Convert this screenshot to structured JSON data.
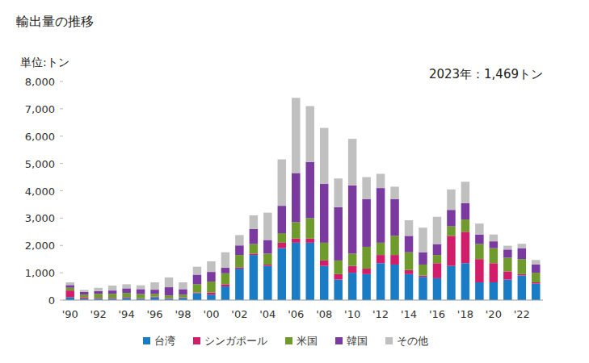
{
  "chart_data": {
    "type": "bar",
    "title": "輸出量の推移",
    "y_label": "単位:トン",
    "annotation": "2023年：1,469トン",
    "stacked": true,
    "grid": false,
    "legend": "bottom",
    "categories": [
      "'90",
      null,
      "'92",
      null,
      "'94",
      null,
      "'96",
      null,
      "'98",
      null,
      "'00",
      null,
      "'02",
      null,
      "'04",
      null,
      "'06",
      null,
      "'08",
      null,
      "'10",
      null,
      "'12",
      null,
      "'14",
      null,
      "'16",
      null,
      "'18",
      null,
      "'20",
      null,
      "'22",
      null
    ],
    "ylim": [
      0,
      8000
    ],
    "yticks": [
      0,
      {
        "value": 1000,
        "label": "1,000"
      },
      {
        "value": 2000,
        "label": "2,000"
      },
      {
        "value": 3000,
        "label": "3,000"
      },
      {
        "value": 4000,
        "label": "4,000"
      },
      {
        "value": 5000,
        "label": "5,000"
      },
      {
        "value": 6000,
        "label": "6,000"
      },
      {
        "value": 7000,
        "label": "7,000"
      },
      {
        "value": 8000,
        "label": "8,000"
      }
    ],
    "series": [
      {
        "name": "台湾",
        "color": "#1b7cc6",
        "values": [
          100,
          50,
          50,
          50,
          80,
          50,
          100,
          50,
          80,
          250,
          200,
          500,
          1150,
          1650,
          1250,
          1900,
          2100,
          2100,
          1250,
          750,
          1000,
          950,
          1350,
          1300,
          950,
          850,
          800,
          1250,
          1350,
          650,
          650,
          750,
          900,
          600
        ]
      },
      {
        "name": "シンガポール",
        "color": "#d21e6a",
        "values": [
          250,
          50,
          30,
          30,
          30,
          20,
          30,
          20,
          20,
          30,
          80,
          80,
          50,
          50,
          50,
          200,
          150,
          150,
          200,
          200,
          250,
          200,
          300,
          350,
          150,
          50,
          550,
          1100,
          1150,
          850,
          700,
          300,
          50,
          50
        ]
      },
      {
        "name": "米国",
        "color": "#6f9a2c",
        "values": [
          100,
          100,
          150,
          150,
          150,
          150,
          100,
          100,
          100,
          300,
          400,
          400,
          450,
          350,
          400,
          350,
          600,
          750,
          650,
          500,
          450,
          800,
          450,
          700,
          650,
          400,
          300,
          350,
          450,
          550,
          550,
          500,
          550,
          350
        ]
      },
      {
        "name": "韓国",
        "color": "#7a3aa0",
        "values": [
          100,
          100,
          100,
          120,
          170,
          180,
          150,
          300,
          200,
          350,
          350,
          200,
          350,
          550,
          500,
          1000,
          1800,
          2050,
          2150,
          1950,
          2500,
          1750,
          2000,
          1350,
          600,
          450,
          400,
          600,
          600,
          350,
          250,
          300,
          400,
          300
        ]
      },
      {
        "name": "その他",
        "color": "#c0c0c0",
        "values": [
          100,
          70,
          120,
          180,
          150,
          140,
          270,
          360,
          250,
          290,
          390,
          570,
          380,
          500,
          1000,
          1700,
          2750,
          2050,
          2050,
          1050,
          1700,
          800,
          520,
          450,
          570,
          900,
          1000,
          750,
          780,
          400,
          250,
          140,
          160,
          169
        ]
      }
    ]
  }
}
